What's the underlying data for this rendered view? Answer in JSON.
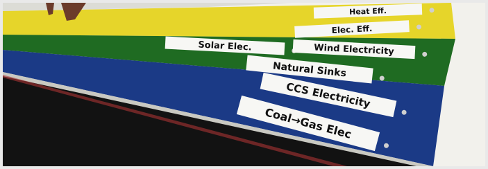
{
  "labels": [
    "Heat Eff.",
    "Elec. Eff.",
    "Solar Elec.",
    "Wind Electricity",
    "Natural Sinks",
    "CCS Electricity",
    "Coal→Gas Elec"
  ]
}
